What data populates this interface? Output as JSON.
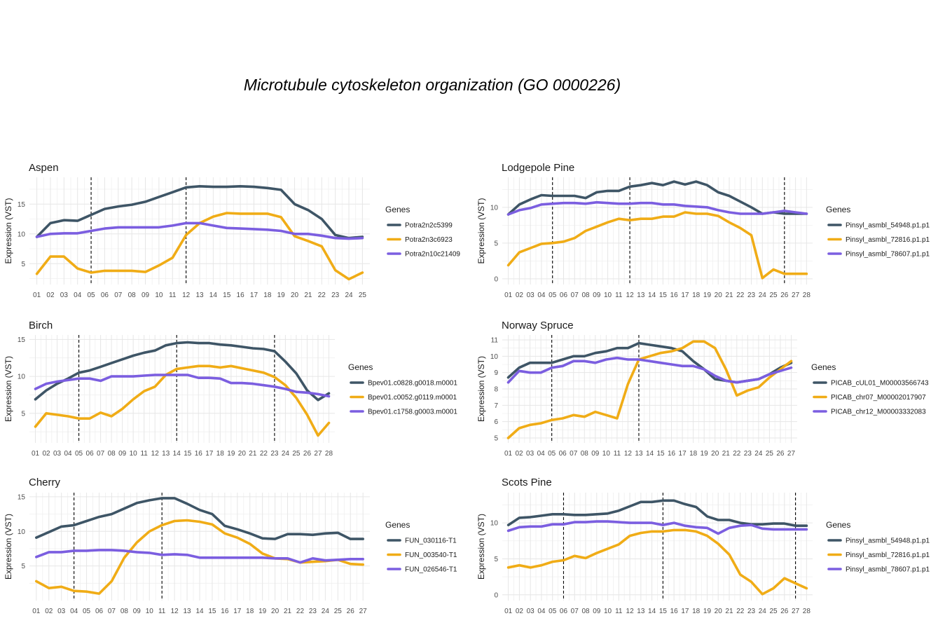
{
  "title": "Microtubule cytoskeleton organization (GO 0000226)",
  "chart_data": [
    {
      "type": "line",
      "panel_title": "Aspen",
      "xlabel": "",
      "ylabel": "Expression (VST)",
      "x": [
        "01",
        "02",
        "03",
        "04",
        "05",
        "06",
        "07",
        "08",
        "09",
        "10",
        "11",
        "12",
        "13",
        "14",
        "15",
        "16",
        "17",
        "18",
        "19",
        "20",
        "21",
        "22",
        "23",
        "24",
        "25"
      ],
      "ylim": [
        1.5,
        19.5
      ],
      "yticks": [
        5,
        10,
        15
      ],
      "vlines": [
        "05",
        "12"
      ],
      "legend_title": "Genes",
      "series": [
        {
          "name": "Potra2n2c5399",
          "color": "#3e5566",
          "values": [
            9.5,
            11.8,
            12.3,
            12.2,
            13.2,
            14.2,
            14.6,
            14.9,
            15.4,
            16.2,
            17.0,
            17.8,
            18.0,
            17.9,
            17.9,
            18.0,
            17.9,
            17.7,
            17.4,
            15.0,
            14.0,
            12.5,
            9.8,
            9.3,
            9.5
          ]
        },
        {
          "name": "Potra2n3c6923",
          "color": "#f0ac16",
          "values": [
            3.3,
            6.2,
            6.2,
            4.2,
            3.5,
            3.8,
            3.8,
            3.8,
            3.6,
            4.7,
            6.0,
            9.8,
            11.8,
            12.9,
            13.5,
            13.4,
            13.4,
            13.4,
            12.8,
            9.6,
            8.8,
            7.9,
            3.9,
            2.4,
            3.5
          ]
        },
        {
          "name": "Potra2n10c21409",
          "color": "#7b5ee0",
          "values": [
            9.5,
            10.0,
            10.1,
            10.1,
            10.5,
            10.9,
            11.1,
            11.1,
            11.1,
            11.1,
            11.4,
            11.8,
            11.8,
            11.4,
            11.0,
            10.9,
            10.8,
            10.7,
            10.5,
            10.0,
            10.0,
            9.7,
            9.3,
            9.2,
            9.3
          ]
        }
      ]
    },
    {
      "type": "line",
      "panel_title": "Lodgepole Pine",
      "xlabel": "",
      "ylabel": "Expression (VST)",
      "x": [
        "01",
        "02",
        "03",
        "04",
        "05",
        "06",
        "07",
        "08",
        "09",
        "10",
        "11",
        "12",
        "13",
        "14",
        "15",
        "16",
        "17",
        "18",
        "19",
        "20",
        "21",
        "22",
        "23",
        "24",
        "25",
        "26",
        "27",
        "28"
      ],
      "ylim": [
        -0.8,
        14.2
      ],
      "yticks": [
        0,
        5,
        10
      ],
      "vlines": [
        "05",
        "12",
        "26"
      ],
      "legend_title": "Genes",
      "series": [
        {
          "name": "Pinsyl_asmbl_54948.p1.p1",
          "color": "#3e5566",
          "values": [
            9.0,
            10.4,
            11.1,
            11.7,
            11.6,
            11.6,
            11.6,
            11.3,
            12.1,
            12.3,
            12.3,
            12.9,
            13.1,
            13.4,
            13.1,
            13.6,
            13.2,
            13.6,
            13.1,
            12.1,
            11.6,
            10.8,
            10.0,
            9.1,
            9.3,
            9.1,
            9.1,
            9.1
          ]
        },
        {
          "name": "Pinsyl_asmbl_72816.p1.p1",
          "color": "#f0ac16",
          "values": [
            1.9,
            3.7,
            4.3,
            4.9,
            5.0,
            5.2,
            5.7,
            6.7,
            7.3,
            7.9,
            8.4,
            8.2,
            8.4,
            8.4,
            8.7,
            8.7,
            9.3,
            9.1,
            9.1,
            8.8,
            7.9,
            7.1,
            6.1,
            0.1,
            1.3,
            0.7,
            0.7,
            0.7
          ]
        },
        {
          "name": "Pinsyl_asmbl_78607.p1.p1",
          "color": "#7b5ee0",
          "values": [
            9.0,
            9.6,
            9.9,
            10.4,
            10.5,
            10.6,
            10.6,
            10.5,
            10.7,
            10.6,
            10.5,
            10.5,
            10.6,
            10.6,
            10.4,
            10.4,
            10.2,
            10.1,
            10.0,
            9.6,
            9.3,
            9.1,
            9.1,
            9.1,
            9.3,
            9.5,
            9.3,
            9.1
          ]
        }
      ]
    },
    {
      "type": "line",
      "panel_title": "Birch",
      "xlabel": "",
      "ylabel": "Expression (VST)",
      "x": [
        "01",
        "02",
        "03",
        "04",
        "05",
        "06",
        "07",
        "08",
        "09",
        "10",
        "11",
        "12",
        "13",
        "14",
        "15",
        "16",
        "17",
        "18",
        "19",
        "20",
        "21",
        "22",
        "23",
        "24",
        "25",
        "26",
        "27",
        "28"
      ],
      "ylim": [
        1.0,
        15.6
      ],
      "yticks": [
        5,
        10,
        15
      ],
      "vlines": [
        "05",
        "14",
        "23"
      ],
      "legend_title": "Genes",
      "series": [
        {
          "name": "Bpev01.c0828.g0018.m0001",
          "color": "#3e5566",
          "values": [
            6.9,
            8.1,
            9.0,
            9.7,
            10.5,
            10.8,
            11.3,
            11.8,
            12.3,
            12.8,
            13.2,
            13.5,
            14.2,
            14.5,
            14.6,
            14.5,
            14.5,
            14.3,
            14.2,
            14.0,
            13.8,
            13.7,
            13.4,
            12.0,
            10.4,
            8.1,
            6.8,
            7.7
          ]
        },
        {
          "name": "Bpev01.c0052.g0119.m0001",
          "color": "#f0ac16",
          "values": [
            3.2,
            5.0,
            4.8,
            4.6,
            4.3,
            4.3,
            5.1,
            4.6,
            5.6,
            6.9,
            8.0,
            8.6,
            10.2,
            11.0,
            11.2,
            11.4,
            11.4,
            11.2,
            11.4,
            11.1,
            10.8,
            10.5,
            9.9,
            8.8,
            7.1,
            4.8,
            2.0,
            3.7
          ]
        },
        {
          "name": "Bpev01.c1758.g0003.m0001",
          "color": "#7b5ee0",
          "values": [
            8.3,
            9.0,
            9.3,
            9.5,
            9.7,
            9.7,
            9.4,
            10.0,
            10.0,
            10.0,
            10.1,
            10.2,
            10.2,
            10.2,
            10.2,
            9.8,
            9.8,
            9.7,
            9.1,
            9.1,
            9.0,
            8.8,
            8.6,
            8.3,
            7.9,
            7.8,
            7.6,
            7.3
          ]
        }
      ]
    },
    {
      "type": "line",
      "panel_title": "Norway Spruce",
      "xlabel": "",
      "ylabel": "Expression (VST)",
      "x": [
        "01",
        "02",
        "03",
        "04",
        "05",
        "06",
        "07",
        "08",
        "09",
        "10",
        "11",
        "12",
        "13",
        "14",
        "15",
        "16",
        "17",
        "18",
        "19",
        "20",
        "21",
        "22",
        "23",
        "24",
        "25",
        "26",
        "27"
      ],
      "ylim": [
        4.7,
        11.3
      ],
      "yticks": [
        5,
        6,
        7,
        8,
        9,
        10,
        11
      ],
      "vlines": [
        "05",
        "13"
      ],
      "legend_title": "Genes",
      "series": [
        {
          "name": "PICAB_cUL01_M00003566743",
          "color": "#3e5566",
          "values": [
            8.7,
            9.3,
            9.6,
            9.6,
            9.6,
            9.8,
            10.0,
            10.0,
            10.2,
            10.3,
            10.5,
            10.5,
            10.8,
            10.7,
            10.6,
            10.5,
            10.3,
            9.7,
            9.2,
            8.6,
            8.5,
            8.4,
            8.5,
            8.6,
            8.9,
            9.3,
            9.6
          ]
        },
        {
          "name": "PICAB_chr07_M00002017907",
          "color": "#f0ac16",
          "values": [
            5.0,
            5.6,
            5.8,
            5.9,
            6.1,
            6.2,
            6.4,
            6.3,
            6.6,
            6.4,
            6.2,
            8.3,
            9.8,
            10.0,
            10.2,
            10.3,
            10.5,
            10.9,
            10.9,
            10.5,
            9.2,
            7.6,
            7.9,
            8.1,
            8.7,
            9.2,
            9.7
          ]
        },
        {
          "name": "PICAB_chr12_M00003332083",
          "color": "#7b5ee0",
          "values": [
            8.4,
            9.1,
            9.0,
            9.0,
            9.3,
            9.4,
            9.7,
            9.7,
            9.6,
            9.8,
            9.9,
            9.8,
            9.8,
            9.7,
            9.6,
            9.5,
            9.4,
            9.4,
            9.2,
            8.8,
            8.5,
            8.4,
            8.5,
            8.6,
            8.9,
            9.1,
            9.3
          ]
        }
      ]
    },
    {
      "type": "line",
      "panel_title": "Cherry",
      "xlabel": "",
      "ylabel": "Expression (VST)",
      "x": [
        "01",
        "02",
        "03",
        "04",
        "05",
        "06",
        "07",
        "08",
        "09",
        "10",
        "11",
        "12",
        "13",
        "14",
        "15",
        "16",
        "17",
        "18",
        "19",
        "20",
        "21",
        "22",
        "23",
        "24",
        "25",
        "26",
        "27"
      ],
      "ylim": [
        0.0,
        15.6
      ],
      "yticks": [
        5,
        10,
        15
      ],
      "vlines": [
        "04",
        "11"
      ],
      "legend_title": "Genes",
      "series": [
        {
          "name": "FUN_030116-T1",
          "color": "#3e5566",
          "values": [
            9.1,
            9.9,
            10.7,
            10.9,
            11.5,
            12.1,
            12.5,
            13.3,
            14.1,
            14.5,
            14.8,
            14.8,
            14.0,
            13.1,
            12.5,
            10.8,
            10.3,
            9.7,
            9.0,
            8.9,
            9.6,
            9.6,
            9.5,
            9.7,
            9.8,
            8.9,
            8.9
          ]
        },
        {
          "name": "FUN_003540-T1",
          "color": "#f0ac16",
          "values": [
            2.8,
            1.8,
            2.0,
            1.4,
            1.3,
            1.0,
            2.8,
            6.2,
            8.4,
            10.0,
            10.9,
            11.5,
            11.6,
            11.4,
            11.0,
            9.7,
            9.1,
            8.2,
            6.8,
            6.1,
            6.0,
            5.5,
            5.6,
            5.7,
            5.9,
            5.3,
            5.2
          ]
        },
        {
          "name": "FUN_026546-T1",
          "color": "#7b5ee0",
          "values": [
            6.3,
            7.0,
            7.0,
            7.2,
            7.2,
            7.3,
            7.3,
            7.2,
            7.0,
            6.9,
            6.6,
            6.7,
            6.6,
            6.2,
            6.2,
            6.2,
            6.2,
            6.2,
            6.2,
            6.1,
            6.1,
            5.5,
            6.1,
            5.8,
            5.9,
            6.0,
            6.0
          ]
        }
      ]
    },
    {
      "type": "line",
      "panel_title": "Scots Pine",
      "xlabel": "",
      "ylabel": "Expression (VST)",
      "x": [
        "01",
        "02",
        "03",
        "04",
        "05",
        "06",
        "07",
        "08",
        "09",
        "10",
        "11",
        "12",
        "13",
        "14",
        "15",
        "16",
        "17",
        "18",
        "19",
        "20",
        "21",
        "22",
        "23",
        "24",
        "25",
        "26",
        "27",
        "28"
      ],
      "ylim": [
        -0.8,
        14.2
      ],
      "yticks": [
        0,
        5,
        10
      ],
      "vlines": [
        "06",
        "15",
        "27"
      ],
      "legend_title": "Genes",
      "series": [
        {
          "name": "Pinsyl_asmbl_54948.p1.p1",
          "color": "#3e5566",
          "values": [
            9.7,
            10.7,
            10.8,
            11.0,
            11.2,
            11.2,
            11.1,
            11.1,
            11.2,
            11.3,
            11.7,
            12.3,
            12.9,
            12.9,
            13.1,
            13.1,
            12.6,
            12.2,
            10.9,
            10.4,
            10.4,
            10.0,
            9.8,
            9.8,
            9.9,
            9.9,
            9.6,
            9.6
          ]
        },
        {
          "name": "Pinsyl_asmbl_72816.p1.p1",
          "color": "#f0ac16",
          "values": [
            3.8,
            4.1,
            3.8,
            4.1,
            4.6,
            4.8,
            5.4,
            5.1,
            5.8,
            6.4,
            7.0,
            8.2,
            8.6,
            8.8,
            8.8,
            9.0,
            9.0,
            8.8,
            8.2,
            7.1,
            5.6,
            2.8,
            1.8,
            0.1,
            0.9,
            2.3,
            1.6,
            0.9
          ]
        },
        {
          "name": "Pinsyl_asmbl_78607.p1.p1",
          "color": "#7b5ee0",
          "values": [
            8.9,
            9.4,
            9.5,
            9.5,
            9.8,
            9.8,
            10.1,
            10.1,
            10.2,
            10.2,
            10.1,
            10.0,
            10.0,
            10.0,
            9.7,
            10.0,
            9.6,
            9.4,
            9.3,
            8.5,
            9.3,
            9.6,
            9.7,
            9.2,
            9.1,
            9.1,
            9.1,
            9.1
          ]
        }
      ]
    }
  ]
}
